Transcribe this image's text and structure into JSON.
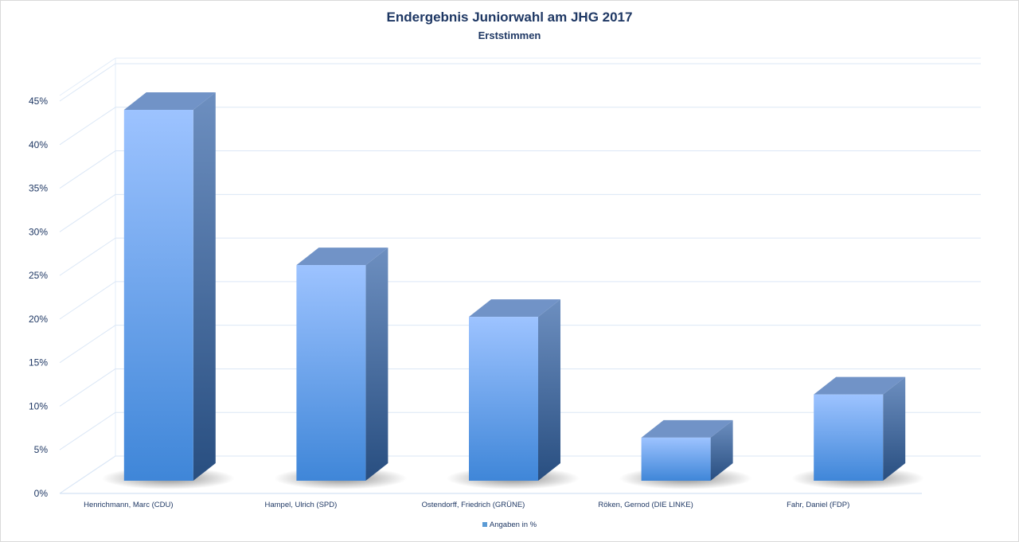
{
  "chart_data": {
    "type": "bar",
    "title": "Endergebnis Juniorwahl am JHG 2017",
    "subtitle": "Erststimmen",
    "categories": [
      "Henrichmann, Marc (CDU)",
      "Hampel, Ulrich (SPD)",
      "Ostendorff, Friedrich (GRÜNE)",
      "Röken, Gernod (DIE LINKE)",
      "Fahr, Daniel (FDP)"
    ],
    "series": [
      {
        "name": "Angaben in %",
        "values": [
          43,
          25,
          19,
          5,
          10
        ]
      }
    ],
    "yticks": [
      "0%",
      "5%",
      "10%",
      "15%",
      "20%",
      "25%",
      "30%",
      "35%",
      "40%",
      "45%"
    ],
    "ylim": [
      0,
      45
    ],
    "grid": true,
    "legend_position": "bottom",
    "colors": {
      "bar_front_top": "#9dc3ff",
      "bar_front_bottom": "#3f86d8",
      "bar_side": "#3f6fa8",
      "bar_top": "#7193c7",
      "text": "#1f3864",
      "grid": "#d6e4f5"
    }
  }
}
